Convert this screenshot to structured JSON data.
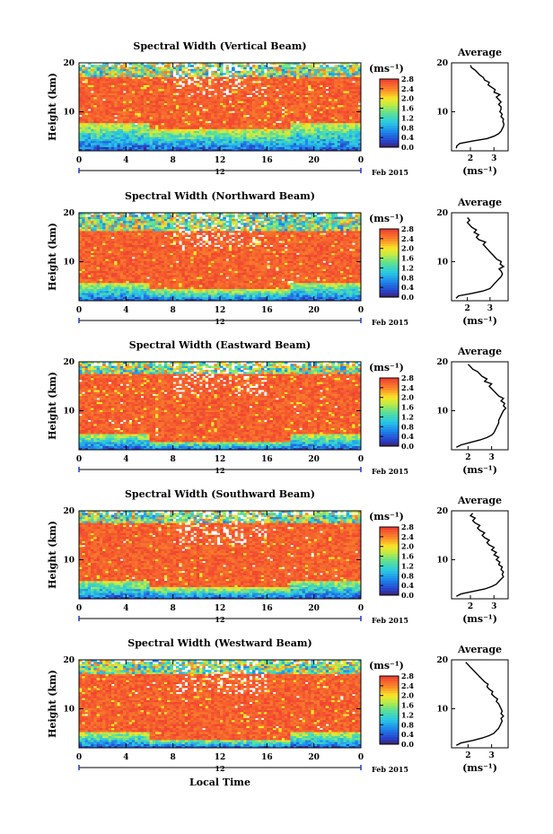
{
  "chart_data": {
    "panels": [
      {
        "type": "heatmap",
        "title": "Spectral Width (Vertical Beam)",
        "ylabel": "Height (km)",
        "x_ticks": [
          "0",
          "4",
          "8",
          "12",
          "16",
          "20",
          "0"
        ],
        "y_ticks": [
          "20",
          "10"
        ],
        "xlim": [
          0,
          24
        ],
        "ylim": [
          2,
          20
        ],
        "day_marker": "12",
        "month_label": "Feb 2015",
        "colorbar": {
          "unit": "(ms⁻¹)",
          "ticks": [
            "2.8",
            "2.4",
            "2.0",
            "1.6",
            "1.2",
            "0.8",
            "0.4",
            "0.0"
          ],
          "range": [
            0,
            2.8
          ]
        },
        "pattern": {
          "top_high": 17.0,
          "bottom_high": 7.5,
          "white_top": 19.2
        },
        "average": {
          "title": "Average",
          "xlabel": "(ms⁻¹)",
          "x_ticks": [
            "2",
            "3"
          ],
          "y_ticks": [
            "20",
            "10"
          ],
          "xlim": [
            1.2,
            3.6
          ],
          "ylim": [
            2,
            20
          ],
          "height": [
            2.5,
            3.0,
            3.5,
            4.0,
            4.5,
            5.0,
            5.5,
            6.0,
            6.5,
            7.0,
            7.5,
            8.0,
            8.5,
            9.0,
            9.5,
            10.0,
            10.5,
            11.0,
            11.5,
            12.0,
            12.5,
            13.0,
            13.5,
            14.0,
            14.5,
            15.0,
            15.5,
            16.0,
            16.5,
            17.0,
            17.5,
            18.0,
            18.5,
            19.0,
            19.5
          ],
          "width": [
            1.4,
            1.42,
            1.55,
            2.1,
            2.7,
            3.0,
            3.2,
            3.3,
            3.35,
            3.4,
            3.42,
            3.38,
            3.4,
            3.3,
            3.35,
            3.25,
            3.3,
            3.3,
            3.2,
            3.3,
            3.2,
            3.1,
            3.25,
            3.0,
            3.05,
            2.9,
            2.75,
            2.8,
            2.6,
            2.55,
            2.4,
            2.3,
            2.2,
            2.05,
            2.0
          ]
        }
      },
      {
        "type": "heatmap",
        "title": "Spectral Width (Northward Beam)",
        "ylabel": "Height (km)",
        "x_ticks": [
          "0",
          "4",
          "8",
          "12",
          "16",
          "20",
          "0"
        ],
        "y_ticks": [
          "20",
          "10"
        ],
        "xlim": [
          0,
          24
        ],
        "ylim": [
          2,
          20
        ],
        "day_marker": "12",
        "month_label": "Feb 2015",
        "colorbar": {
          "unit": "(ms⁻¹)",
          "ticks": [
            "2.8",
            "2.4",
            "2.0",
            "1.6",
            "1.2",
            "0.8",
            "0.4",
            "0.0"
          ],
          "range": [
            0,
            2.8
          ]
        },
        "pattern": {
          "top_high": 16.5,
          "bottom_high": 5.5,
          "white_top": 19.0
        },
        "average": {
          "title": "Average",
          "xlabel": "(ms⁻¹)",
          "x_ticks": [
            "2",
            "3"
          ],
          "y_ticks": [
            "20",
            "10"
          ],
          "xlim": [
            1.3,
            3.8
          ],
          "ylim": [
            2,
            20
          ],
          "height": [
            2.5,
            3.0,
            3.5,
            4.0,
            4.5,
            5.0,
            5.5,
            6.0,
            6.5,
            7.0,
            7.5,
            8.0,
            8.5,
            9.0,
            9.5,
            10.0,
            10.5,
            11.0,
            11.5,
            12.0,
            12.5,
            13.0,
            13.5,
            14.0,
            14.5,
            15.0,
            15.5,
            16.0,
            16.5,
            17.0,
            17.5,
            18.0,
            18.5,
            19.0
          ],
          "width": [
            1.5,
            1.6,
            2.2,
            2.7,
            3.0,
            3.1,
            3.2,
            3.3,
            3.4,
            3.5,
            3.55,
            3.5,
            3.4,
            3.6,
            3.45,
            3.5,
            3.3,
            3.2,
            3.1,
            3.0,
            2.9,
            2.8,
            2.7,
            2.8,
            2.5,
            2.4,
            2.5,
            2.3,
            2.4,
            2.2,
            2.1,
            2.0,
            2.1,
            2.0
          ]
        }
      },
      {
        "type": "heatmap",
        "title": "Spectral Width (Eastward Beam)",
        "ylabel": "Height (km)",
        "x_ticks": [
          "0",
          "4",
          "8",
          "12",
          "16",
          "20",
          "0"
        ],
        "y_ticks": [
          "20",
          "10"
        ],
        "xlim": [
          0,
          24
        ],
        "ylim": [
          2,
          20
        ],
        "day_marker": "12",
        "month_label": "Feb 2015",
        "colorbar": {
          "unit": "(ms⁻¹)",
          "ticks": [
            "2.8",
            "2.4",
            "2.0",
            "1.6",
            "1.2",
            "0.8",
            "0.4",
            "0.0"
          ],
          "range": [
            0,
            2.8
          ]
        },
        "pattern": {
          "top_high": 17.5,
          "bottom_high": 5.0,
          "white_top": 19.2
        },
        "average": {
          "title": "Average",
          "xlabel": "(ms⁻¹)",
          "x_ticks": [
            "2",
            "3"
          ],
          "y_ticks": [
            "20",
            "10"
          ],
          "xlim": [
            1.3,
            3.7
          ],
          "ylim": [
            2,
            20
          ],
          "height": [
            2.5,
            3.0,
            3.5,
            4.0,
            4.5,
            5.0,
            5.5,
            6.0,
            6.5,
            7.0,
            7.5,
            8.0,
            8.5,
            9.0,
            9.5,
            10.0,
            10.5,
            11.0,
            11.5,
            12.0,
            12.5,
            13.0,
            13.5,
            14.0,
            14.5,
            15.0,
            15.5,
            16.0,
            16.5,
            17.0,
            17.5,
            18.0,
            18.5,
            19.0,
            19.5
          ],
          "width": [
            1.5,
            1.7,
            2.1,
            2.5,
            2.8,
            3.0,
            3.1,
            3.15,
            3.2,
            3.25,
            3.3,
            3.3,
            3.35,
            3.4,
            3.45,
            3.5,
            3.6,
            3.5,
            3.55,
            3.4,
            3.5,
            3.3,
            3.2,
            3.1,
            3.0,
            2.9,
            3.0,
            2.7,
            2.8,
            2.6,
            2.5,
            2.4,
            2.2,
            2.1,
            2.0
          ]
        }
      },
      {
        "type": "heatmap",
        "title": "Spectral Width (Southward Beam)",
        "ylabel": "Height (km)",
        "x_ticks": [
          "0",
          "4",
          "8",
          "12",
          "16",
          "20",
          "0"
        ],
        "y_ticks": [
          "20",
          "10"
        ],
        "xlim": [
          0,
          24
        ],
        "ylim": [
          2,
          20
        ],
        "day_marker": "12",
        "month_label": "Feb 2015",
        "colorbar": {
          "unit": "(ms⁻¹)",
          "ticks": [
            "2.8",
            "2.4",
            "2.0",
            "1.6",
            "1.2",
            "0.8",
            "0.4",
            "0.0"
          ],
          "range": [
            0,
            2.8
          ]
        },
        "pattern": {
          "top_high": 17.5,
          "bottom_high": 5.5,
          "white_top": 19.0
        },
        "average": {
          "title": "Average",
          "xlabel": "(ms⁻¹)",
          "x_ticks": [
            "2",
            "3"
          ],
          "y_ticks": [
            "20",
            "10"
          ],
          "xlim": [
            1.2,
            3.6
          ],
          "ylim": [
            2,
            20
          ],
          "height": [
            2.5,
            3.0,
            3.5,
            4.0,
            4.5,
            5.0,
            5.5,
            6.0,
            6.5,
            7.0,
            7.5,
            8.0,
            8.5,
            9.0,
            9.5,
            10.0,
            10.5,
            11.0,
            11.5,
            12.0,
            12.5,
            13.0,
            13.5,
            14.0,
            14.5,
            15.0,
            15.5,
            16.0,
            16.5,
            17.0,
            17.5,
            18.0,
            18.5,
            19.0,
            19.5
          ],
          "width": [
            1.4,
            1.6,
            2.1,
            2.6,
            2.9,
            3.1,
            3.2,
            3.3,
            3.4,
            3.35,
            3.4,
            3.3,
            3.35,
            3.2,
            3.25,
            3.1,
            3.2,
            3.0,
            3.1,
            2.9,
            3.0,
            2.8,
            2.7,
            2.8,
            2.6,
            2.5,
            2.6,
            2.4,
            2.3,
            2.4,
            2.2,
            2.1,
            2.2,
            2.0,
            2.1
          ]
        }
      },
      {
        "type": "heatmap",
        "title": "Spectral Width (Westward Beam)",
        "ylabel": "Height (km)",
        "xlabel": "Local Time",
        "x_ticks": [
          "0",
          "4",
          "8",
          "12",
          "16",
          "20",
          "0"
        ],
        "y_ticks": [
          "20",
          "10"
        ],
        "xlim": [
          0,
          24
        ],
        "ylim": [
          2,
          20
        ],
        "day_marker": "12",
        "month_label": "Feb 2015",
        "colorbar": {
          "unit": "(ms⁻¹)",
          "ticks": [
            "2.8",
            "2.4",
            "2.0",
            "1.6",
            "1.2",
            "0.8",
            "0.4",
            "0.0"
          ],
          "range": [
            0,
            2.8
          ]
        },
        "pattern": {
          "top_high": 17.0,
          "bottom_high": 5.0,
          "white_top": 19.2
        },
        "average": {
          "title": "Average",
          "xlabel": "(ms⁻¹)",
          "x_ticks": [
            "2",
            "3"
          ],
          "y_ticks": [
            "20",
            "10"
          ],
          "xlim": [
            1.3,
            3.7
          ],
          "ylim": [
            2,
            20
          ],
          "height": [
            2.5,
            3.0,
            3.5,
            4.0,
            4.5,
            5.0,
            5.5,
            6.0,
            6.5,
            7.0,
            7.5,
            8.0,
            8.5,
            9.0,
            9.5,
            10.0,
            10.5,
            11.0,
            11.5,
            12.0,
            12.5,
            13.0,
            13.5,
            14.0,
            14.5,
            15.0,
            15.5,
            16.0,
            16.5,
            17.0,
            17.5,
            18.0,
            18.5,
            19.0,
            19.5
          ],
          "width": [
            1.5,
            1.7,
            2.2,
            2.6,
            2.9,
            3.1,
            3.2,
            3.3,
            3.35,
            3.4,
            3.45,
            3.4,
            3.5,
            3.4,
            3.45,
            3.4,
            3.35,
            3.3,
            3.2,
            3.25,
            3.1,
            3.0,
            3.05,
            2.9,
            2.8,
            2.85,
            2.7,
            2.6,
            2.5,
            2.4,
            2.3,
            2.2,
            2.1,
            2.0,
            1.9
          ]
        }
      }
    ]
  }
}
